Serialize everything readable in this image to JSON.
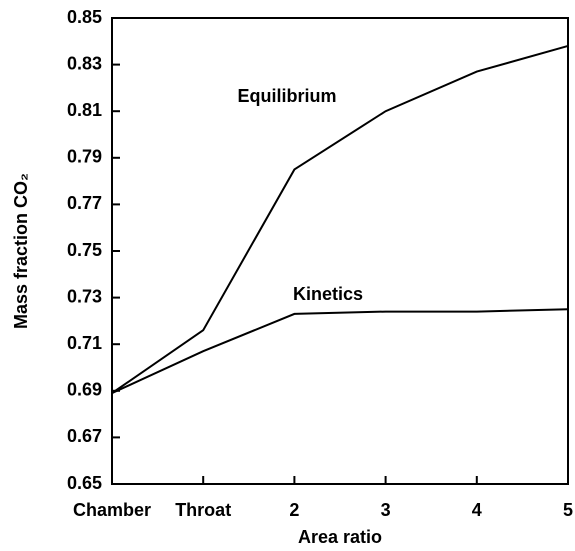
{
  "chart_data": {
    "type": "line",
    "categories": [
      "Chamber",
      "Throat",
      "2",
      "3",
      "4",
      "5"
    ],
    "series": [
      {
        "name": "Equilibrium",
        "color": "#000000",
        "values": [
          0.689,
          0.716,
          0.785,
          0.81,
          0.827,
          0.838
        ]
      },
      {
        "name": "Kinetics",
        "color": "#000000",
        "values": [
          0.689,
          0.707,
          0.723,
          0.724,
          0.724,
          0.725
        ]
      }
    ],
    "x_label": "Area ratio",
    "y_label": "Mass fraction CO₂",
    "ylim": [
      0.65,
      0.85
    ],
    "yticks": [
      0.65,
      0.67,
      0.69,
      0.71,
      0.73,
      0.75,
      0.77,
      0.79,
      0.81,
      0.83,
      0.85
    ]
  }
}
